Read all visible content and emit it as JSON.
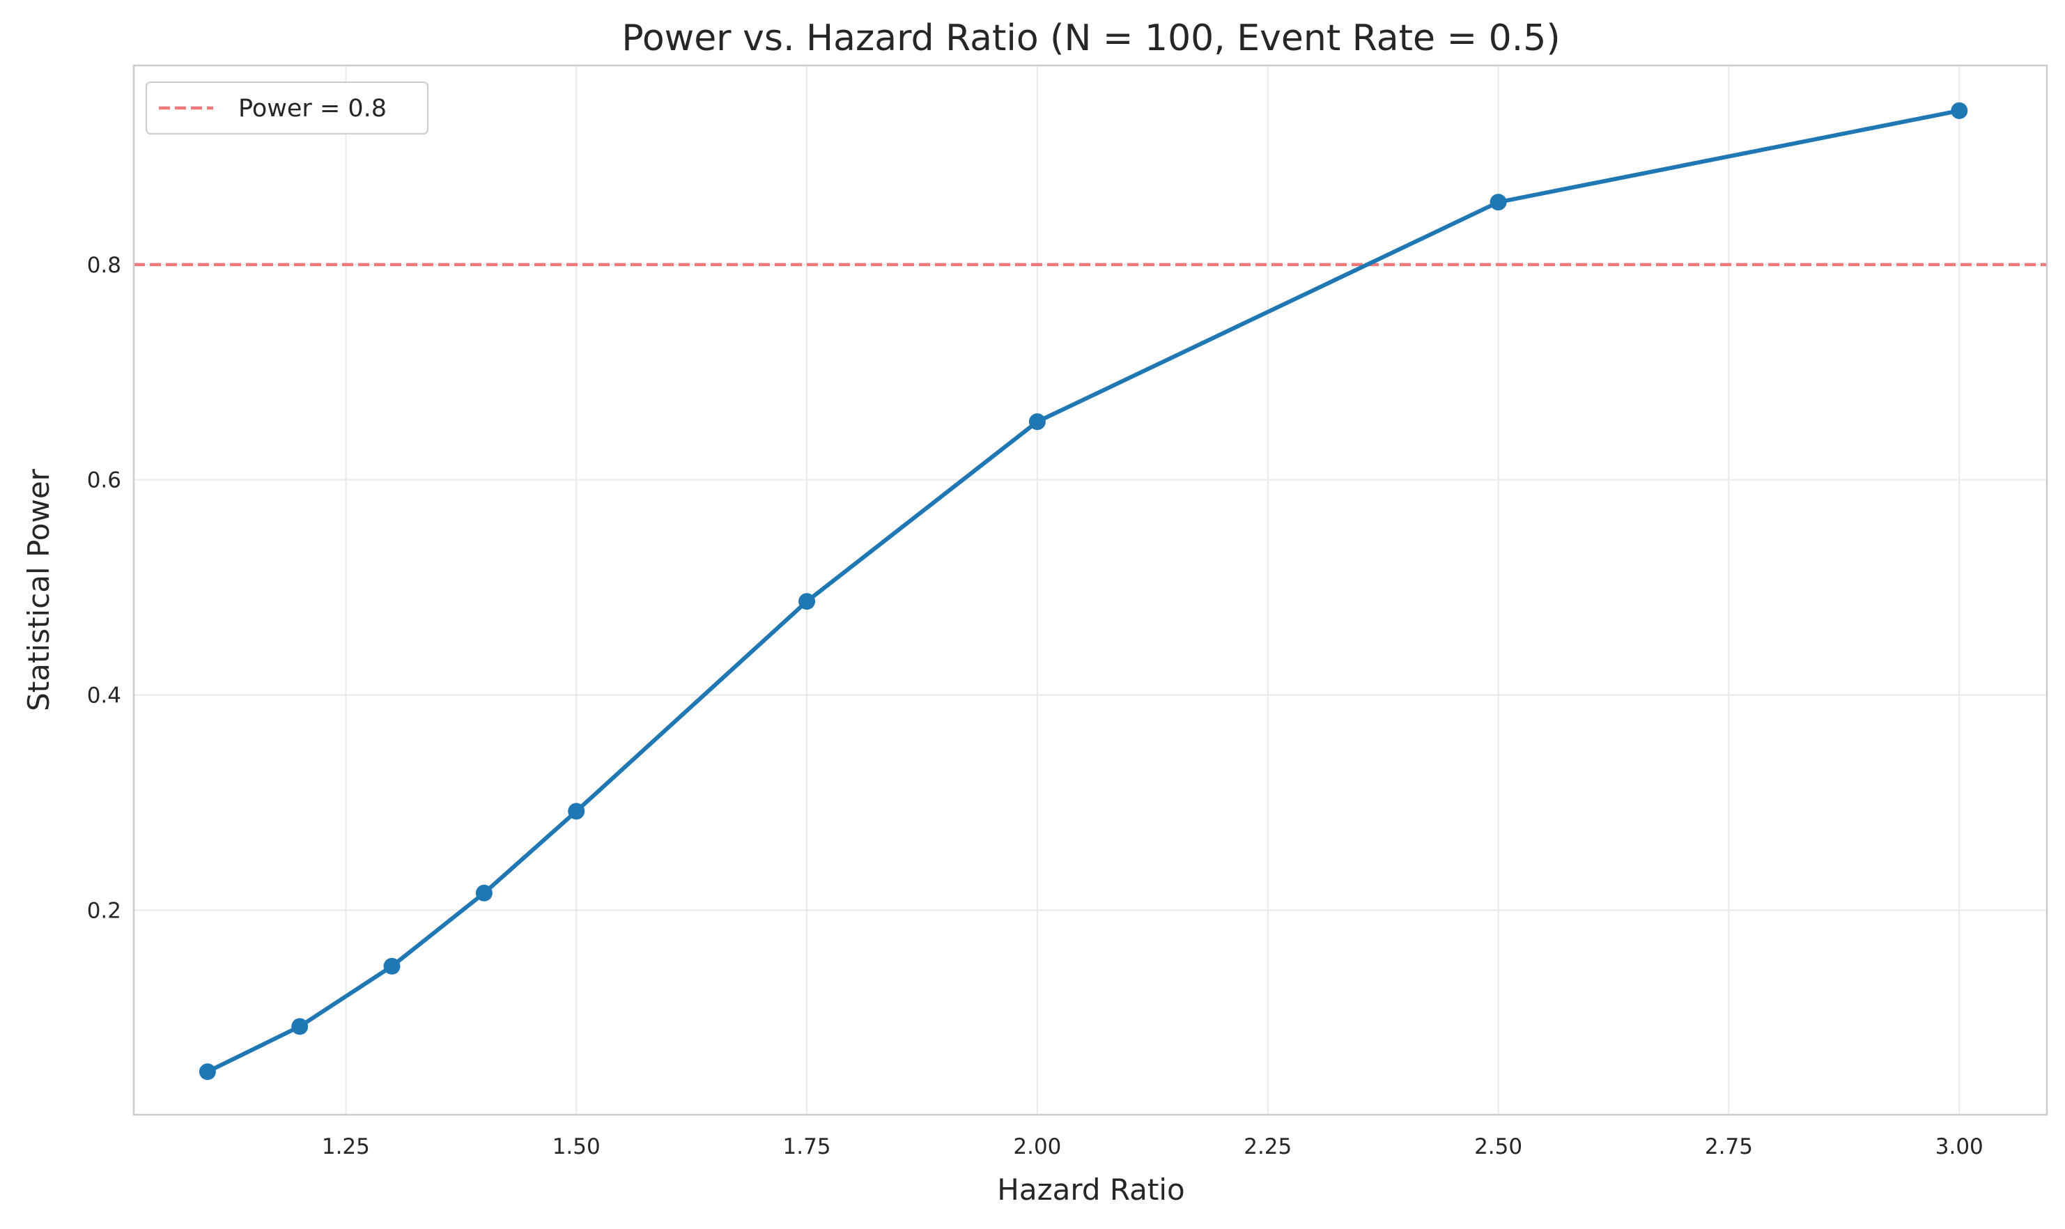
{
  "chart_data": {
    "type": "line",
    "title": "Power vs. Hazard Ratio (N = 100, Event Rate = 0.5)",
    "xlabel": "Hazard Ratio",
    "ylabel": "Statistical Power",
    "xlim": [
      1.02,
      3.095
    ],
    "ylim": [
      0.01,
      0.985
    ],
    "xticks": [
      1.25,
      1.5,
      1.75,
      2.0,
      2.25,
      2.5,
      2.75,
      3.0
    ],
    "xtick_labels": [
      "1.25",
      "1.50",
      "1.75",
      "2.00",
      "2.25",
      "2.50",
      "2.75",
      "3.00"
    ],
    "yticks": [
      0.2,
      0.4,
      0.6,
      0.8
    ],
    "ytick_labels": [
      "0.2",
      "0.4",
      "0.6",
      "0.8"
    ],
    "grid": true,
    "series": [
      {
        "x": [
          1.1,
          1.2,
          1.3,
          1.4,
          1.5,
          1.75,
          2.0,
          2.5,
          3.0
        ],
        "y": [
          0.05,
          0.092,
          0.148,
          0.216,
          0.292,
          0.487,
          0.654,
          0.858,
          0.943
        ],
        "color": "#1f77b4",
        "marker": "circle"
      }
    ],
    "reference_line": {
      "name": "Power = 0.8",
      "y": 0.8,
      "color": "#f07a7a",
      "style": "dashed"
    },
    "legend": {
      "position": "top-left",
      "entries": [
        "Power = 0.8"
      ]
    }
  }
}
